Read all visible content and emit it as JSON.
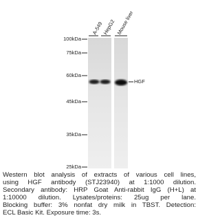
{
  "lanes": [
    "A-549",
    "HepG2",
    "Mouse liver"
  ],
  "markers": [
    "100kDa",
    "75kDa",
    "60kDa",
    "45kDa",
    "35kDa",
    "25kDa"
  ],
  "band_label": "HGF",
  "caption": [
    "Western blot analysis of extracts of various cell lines,",
    "using HGF antibody (STJ23940) at 1:1000 dilution.",
    "Secondary antibody: HRP Goat Anti-rabbit IgG (H+L) at",
    "1:10000 dilution. Lysates/proteins: 25ug per lane.",
    "Blocking buffer: 3% nonfat dry milk in TBST. Detection:",
    "ECL Basic Kit. Exposure time: 3s."
  ]
}
